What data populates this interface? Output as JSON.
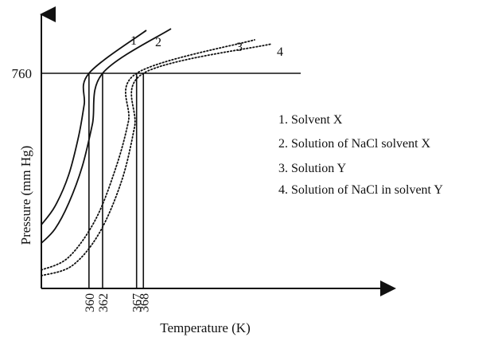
{
  "chart_data": {
    "type": "line",
    "title": "",
    "xlabel": "Temperature (K)",
    "ylabel": "Pressure (mm Hg)",
    "y_reference": {
      "value": 760,
      "label": "760"
    },
    "x_markers": [
      {
        "value": 360,
        "label": "360"
      },
      {
        "value": 362,
        "label": "362"
      },
      {
        "value": 367,
        "label": "367"
      },
      {
        "value": 368,
        "label": "368"
      }
    ],
    "series": [
      {
        "id": "1",
        "label": "1",
        "name": "Solvent X",
        "style": "solid",
        "x": [
          353.0,
          355.0,
          357.0,
          358.5,
          359.3,
          360.0
        ],
        "y": [
          225,
          290,
          400,
          540,
          650,
          760
        ]
      },
      {
        "id": "2",
        "label": "2",
        "name": "Solution of NaCl solvent X",
        "style": "solid",
        "x": [
          353.0,
          355.0,
          357.0,
          359.0,
          360.5,
          362.0
        ],
        "y": [
          160,
          210,
          300,
          430,
          580,
          760
        ]
      },
      {
        "id": "3",
        "label": "3",
        "name": "Solution Y",
        "style": "dotted",
        "x": [
          353.0,
          357.0,
          361.0,
          364.0,
          365.8,
          367.0
        ],
        "y": [
          65,
          110,
          245,
          430,
          590,
          760
        ]
      },
      {
        "id": "4",
        "label": "4",
        "name": "Solution of NaCl in solvent Y",
        "style": "dotted",
        "x": [
          353.0,
          357.5,
          361.5,
          364.8,
          366.7,
          368.0
        ],
        "y": [
          45,
          80,
          195,
          380,
          570,
          760
        ]
      }
    ],
    "legend": {
      "placement": "right",
      "entries": [
        "1. Solvent X",
        "2. Solution of NaCl solvent X",
        "3. Solution Y",
        "4. Solution of NaCl in solvent Y"
      ]
    },
    "grid": false
  }
}
